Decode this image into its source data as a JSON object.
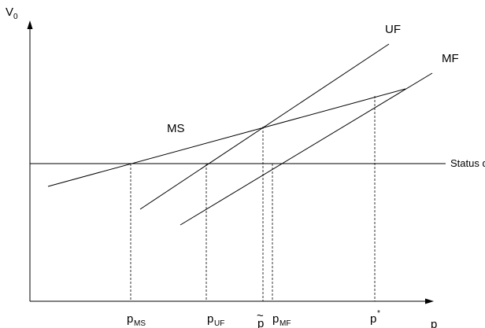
{
  "axes": {
    "y_label": "V",
    "y_label_sub": "0",
    "x_label": "p"
  },
  "lines": {
    "uf_label": "UF",
    "mf_label": "MF",
    "ms_label": "MS",
    "status_quo_label": "Status quo"
  },
  "tick_labels": {
    "p_ms": {
      "base": "p",
      "sub": "MS"
    },
    "p_uf": {
      "base": "p",
      "sub": "UF"
    },
    "p_tilde": {
      "base": "p",
      "tilde": "~"
    },
    "p_mf": {
      "base": "p",
      "sub": "MF"
    },
    "p_star": {
      "base": "p",
      "sup": "*"
    }
  },
  "colors": {
    "ink": "#000000",
    "background": "#ffffff"
  }
}
